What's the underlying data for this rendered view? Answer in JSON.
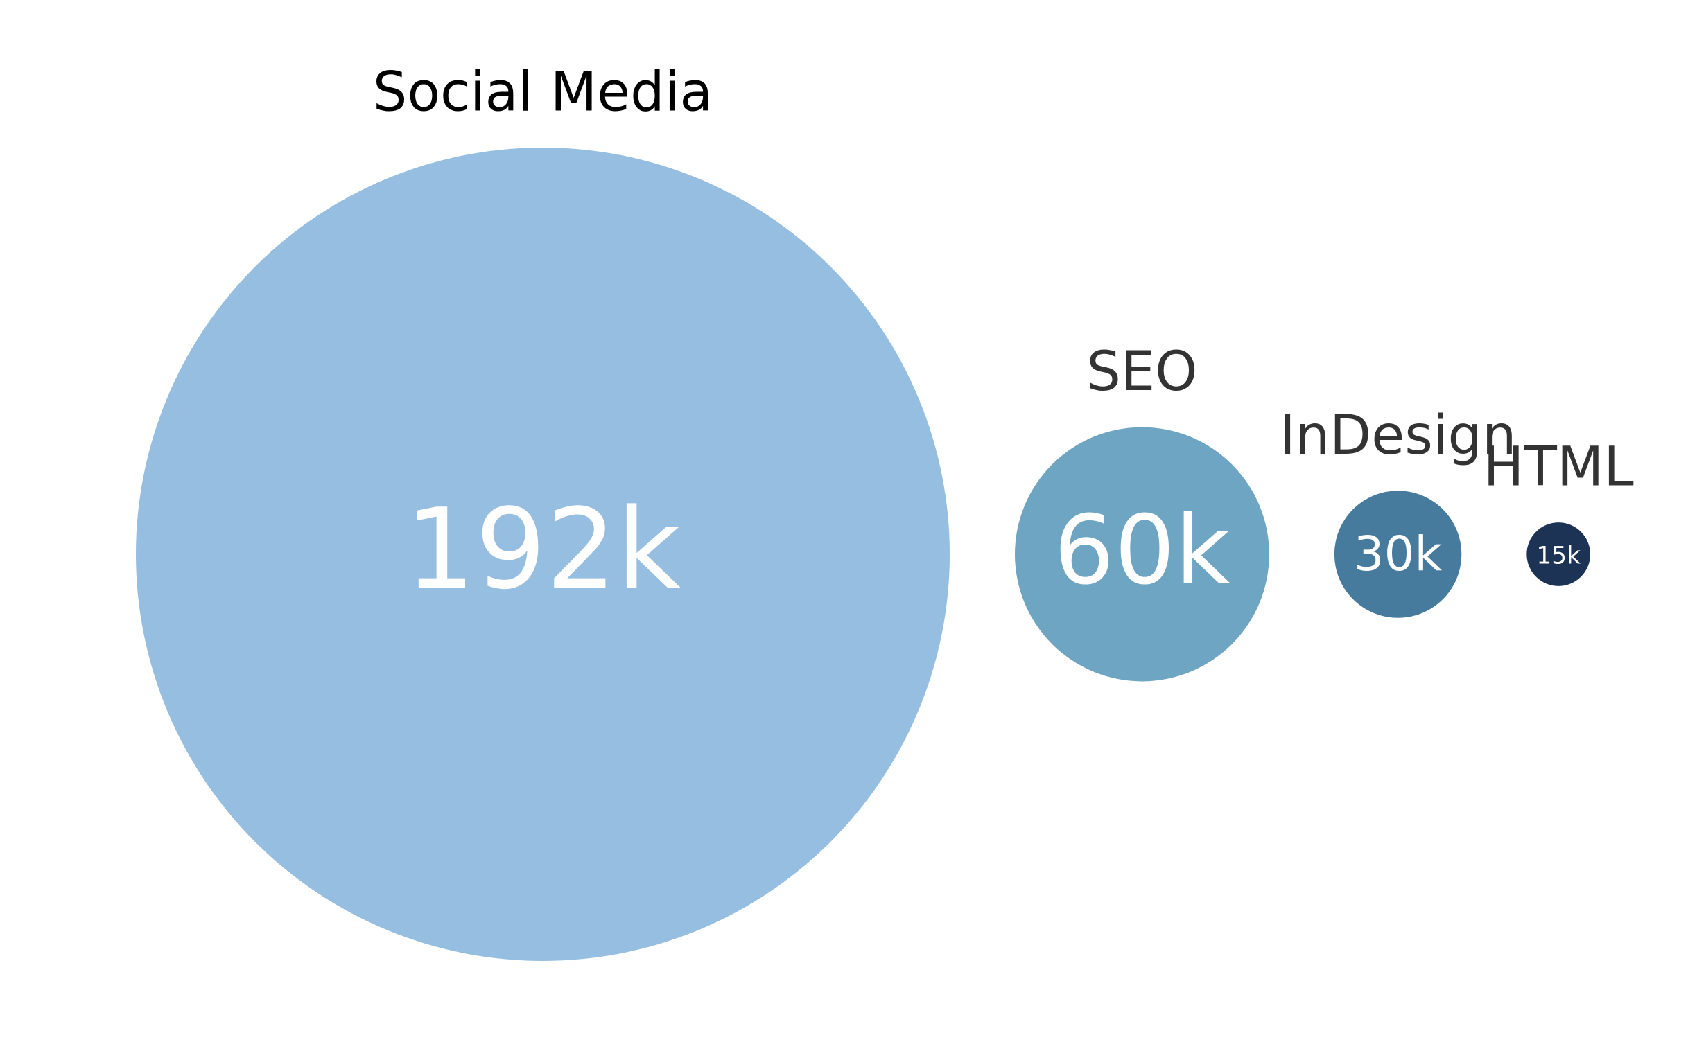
{
  "chart_data": {
    "type": "bubble",
    "categories": [
      "Social Media",
      "SEO",
      "InDesign",
      "HTML"
    ],
    "values": [
      192000,
      60000,
      30000,
      15000
    ],
    "value_labels": [
      "192k",
      "60k",
      "30k",
      "15k"
    ],
    "colors": [
      "#95bee0",
      "#6ea5c2",
      "#467b9e",
      "#1c3356"
    ]
  }
}
